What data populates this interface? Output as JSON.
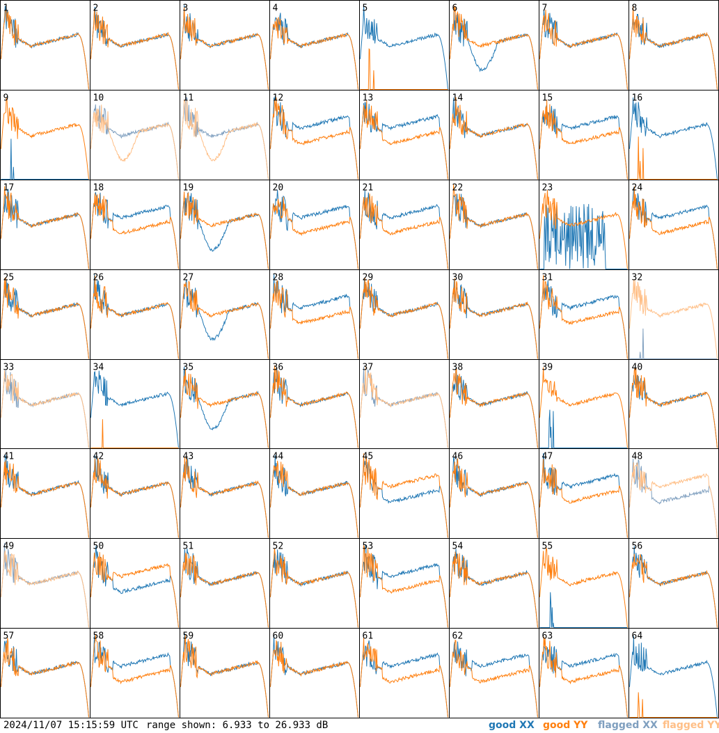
{
  "chart_data": {
    "type": "line",
    "layout": "8x8 grid of per-tile bandpass spectra",
    "tiles": [
      {
        "label": "1",
        "profile": "normal",
        "flagged": false
      },
      {
        "label": "2",
        "profile": "normal",
        "flagged": false
      },
      {
        "label": "3",
        "profile": "normal",
        "flagged": false
      },
      {
        "label": "4",
        "profile": "normal",
        "flagged": false
      },
      {
        "label": "5",
        "profile": "yy_dead",
        "flagged": false
      },
      {
        "label": "6",
        "profile": "xx_dip",
        "flagged": false
      },
      {
        "label": "7",
        "profile": "normal",
        "flagged": false
      },
      {
        "label": "8",
        "profile": "normal",
        "flagged": false
      },
      {
        "label": "9",
        "profile": "xx_dead",
        "flagged": false
      },
      {
        "label": "10",
        "profile": "yy_dip",
        "flagged": true
      },
      {
        "label": "11",
        "profile": "yy_dip",
        "flagged": true
      },
      {
        "label": "12",
        "profile": "split_xx_high",
        "flagged": false
      },
      {
        "label": "13",
        "profile": "split_xx_high",
        "flagged": false
      },
      {
        "label": "14",
        "profile": "normal",
        "flagged": false
      },
      {
        "label": "15",
        "profile": "split_xx_high",
        "flagged": false
      },
      {
        "label": "16",
        "profile": "yy_dead",
        "flagged": false
      },
      {
        "label": "17",
        "profile": "normal",
        "flagged": false
      },
      {
        "label": "18",
        "profile": "split_xx_high",
        "flagged": false
      },
      {
        "label": "19",
        "profile": "xx_dip",
        "flagged": false
      },
      {
        "label": "20",
        "profile": "split_xx_high",
        "flagged": false
      },
      {
        "label": "21",
        "profile": "split_xx_high",
        "flagged": false
      },
      {
        "label": "22",
        "profile": "normal",
        "flagged": false
      },
      {
        "label": "23",
        "profile": "xx_noisy",
        "flagged": false
      },
      {
        "label": "24",
        "profile": "split_xx_high",
        "flagged": false
      },
      {
        "label": "25",
        "profile": "normal",
        "flagged": false
      },
      {
        "label": "26",
        "profile": "normal",
        "flagged": false
      },
      {
        "label": "27",
        "profile": "xx_dip",
        "flagged": false
      },
      {
        "label": "28",
        "profile": "split_xx_high",
        "flagged": false
      },
      {
        "label": "29",
        "profile": "normal",
        "flagged": false
      },
      {
        "label": "30",
        "profile": "normal",
        "flagged": false
      },
      {
        "label": "31",
        "profile": "split_xx_high",
        "flagged": false
      },
      {
        "label": "32",
        "profile": "xx_dead",
        "flagged": true
      },
      {
        "label": "33",
        "profile": "normal",
        "flagged": true
      },
      {
        "label": "34",
        "profile": "yy_dead",
        "flagged": false
      },
      {
        "label": "35",
        "profile": "xx_dip",
        "flagged": false
      },
      {
        "label": "36",
        "profile": "normal",
        "flagged": false
      },
      {
        "label": "37",
        "profile": "normal",
        "flagged": true
      },
      {
        "label": "38",
        "profile": "normal",
        "flagged": false
      },
      {
        "label": "39",
        "profile": "xx_dead",
        "flagged": false
      },
      {
        "label": "40",
        "profile": "normal",
        "flagged": false
      },
      {
        "label": "41",
        "profile": "normal",
        "flagged": false
      },
      {
        "label": "42",
        "profile": "normal",
        "flagged": false
      },
      {
        "label": "43",
        "profile": "normal",
        "flagged": false
      },
      {
        "label": "44",
        "profile": "normal",
        "flagged": false
      },
      {
        "label": "45",
        "profile": "split_yy_high",
        "flagged": false
      },
      {
        "label": "46",
        "profile": "normal",
        "flagged": false
      },
      {
        "label": "47",
        "profile": "split_xx_high",
        "flagged": false
      },
      {
        "label": "48",
        "profile": "split_yy_high",
        "flagged": true
      },
      {
        "label": "49",
        "profile": "normal",
        "flagged": true
      },
      {
        "label": "50",
        "profile": "split_yy_high",
        "flagged": false
      },
      {
        "label": "51",
        "profile": "normal",
        "flagged": false
      },
      {
        "label": "52",
        "profile": "normal",
        "flagged": false
      },
      {
        "label": "53",
        "profile": "split_xx_high",
        "flagged": false
      },
      {
        "label": "54",
        "profile": "normal",
        "flagged": false
      },
      {
        "label": "55",
        "profile": "xx_dead",
        "flagged": false
      },
      {
        "label": "56",
        "profile": "normal",
        "flagged": false
      },
      {
        "label": "57",
        "profile": "normal",
        "flagged": false
      },
      {
        "label": "58",
        "profile": "split_xx_high",
        "flagged": false
      },
      {
        "label": "59",
        "profile": "normal",
        "flagged": false
      },
      {
        "label": "60",
        "profile": "normal",
        "flagged": false
      },
      {
        "label": "61",
        "profile": "split_xx_high",
        "flagged": false
      },
      {
        "label": "62",
        "profile": "split_xx_high",
        "flagged": false
      },
      {
        "label": "63",
        "profile": "split_xx_high",
        "flagged": false
      },
      {
        "label": "64",
        "profile": "yy_dead",
        "flagged": false
      }
    ],
    "ylim_db": [
      6.933,
      26.933
    ],
    "legend": [
      {
        "label": "good XX",
        "color": "#1f77b4"
      },
      {
        "label": "good YY",
        "color": "#ff7f0e"
      },
      {
        "label": "flagged XX",
        "color": "#7f9fbf"
      },
      {
        "label": "flagged YY",
        "color": "#ffbf87"
      }
    ],
    "legend_placement": "bottom-right"
  },
  "footer": {
    "timestamp": "2024/11/07 15:15:59 UTC",
    "range_text": "range shown: 6.933 to 26.933 dB"
  }
}
